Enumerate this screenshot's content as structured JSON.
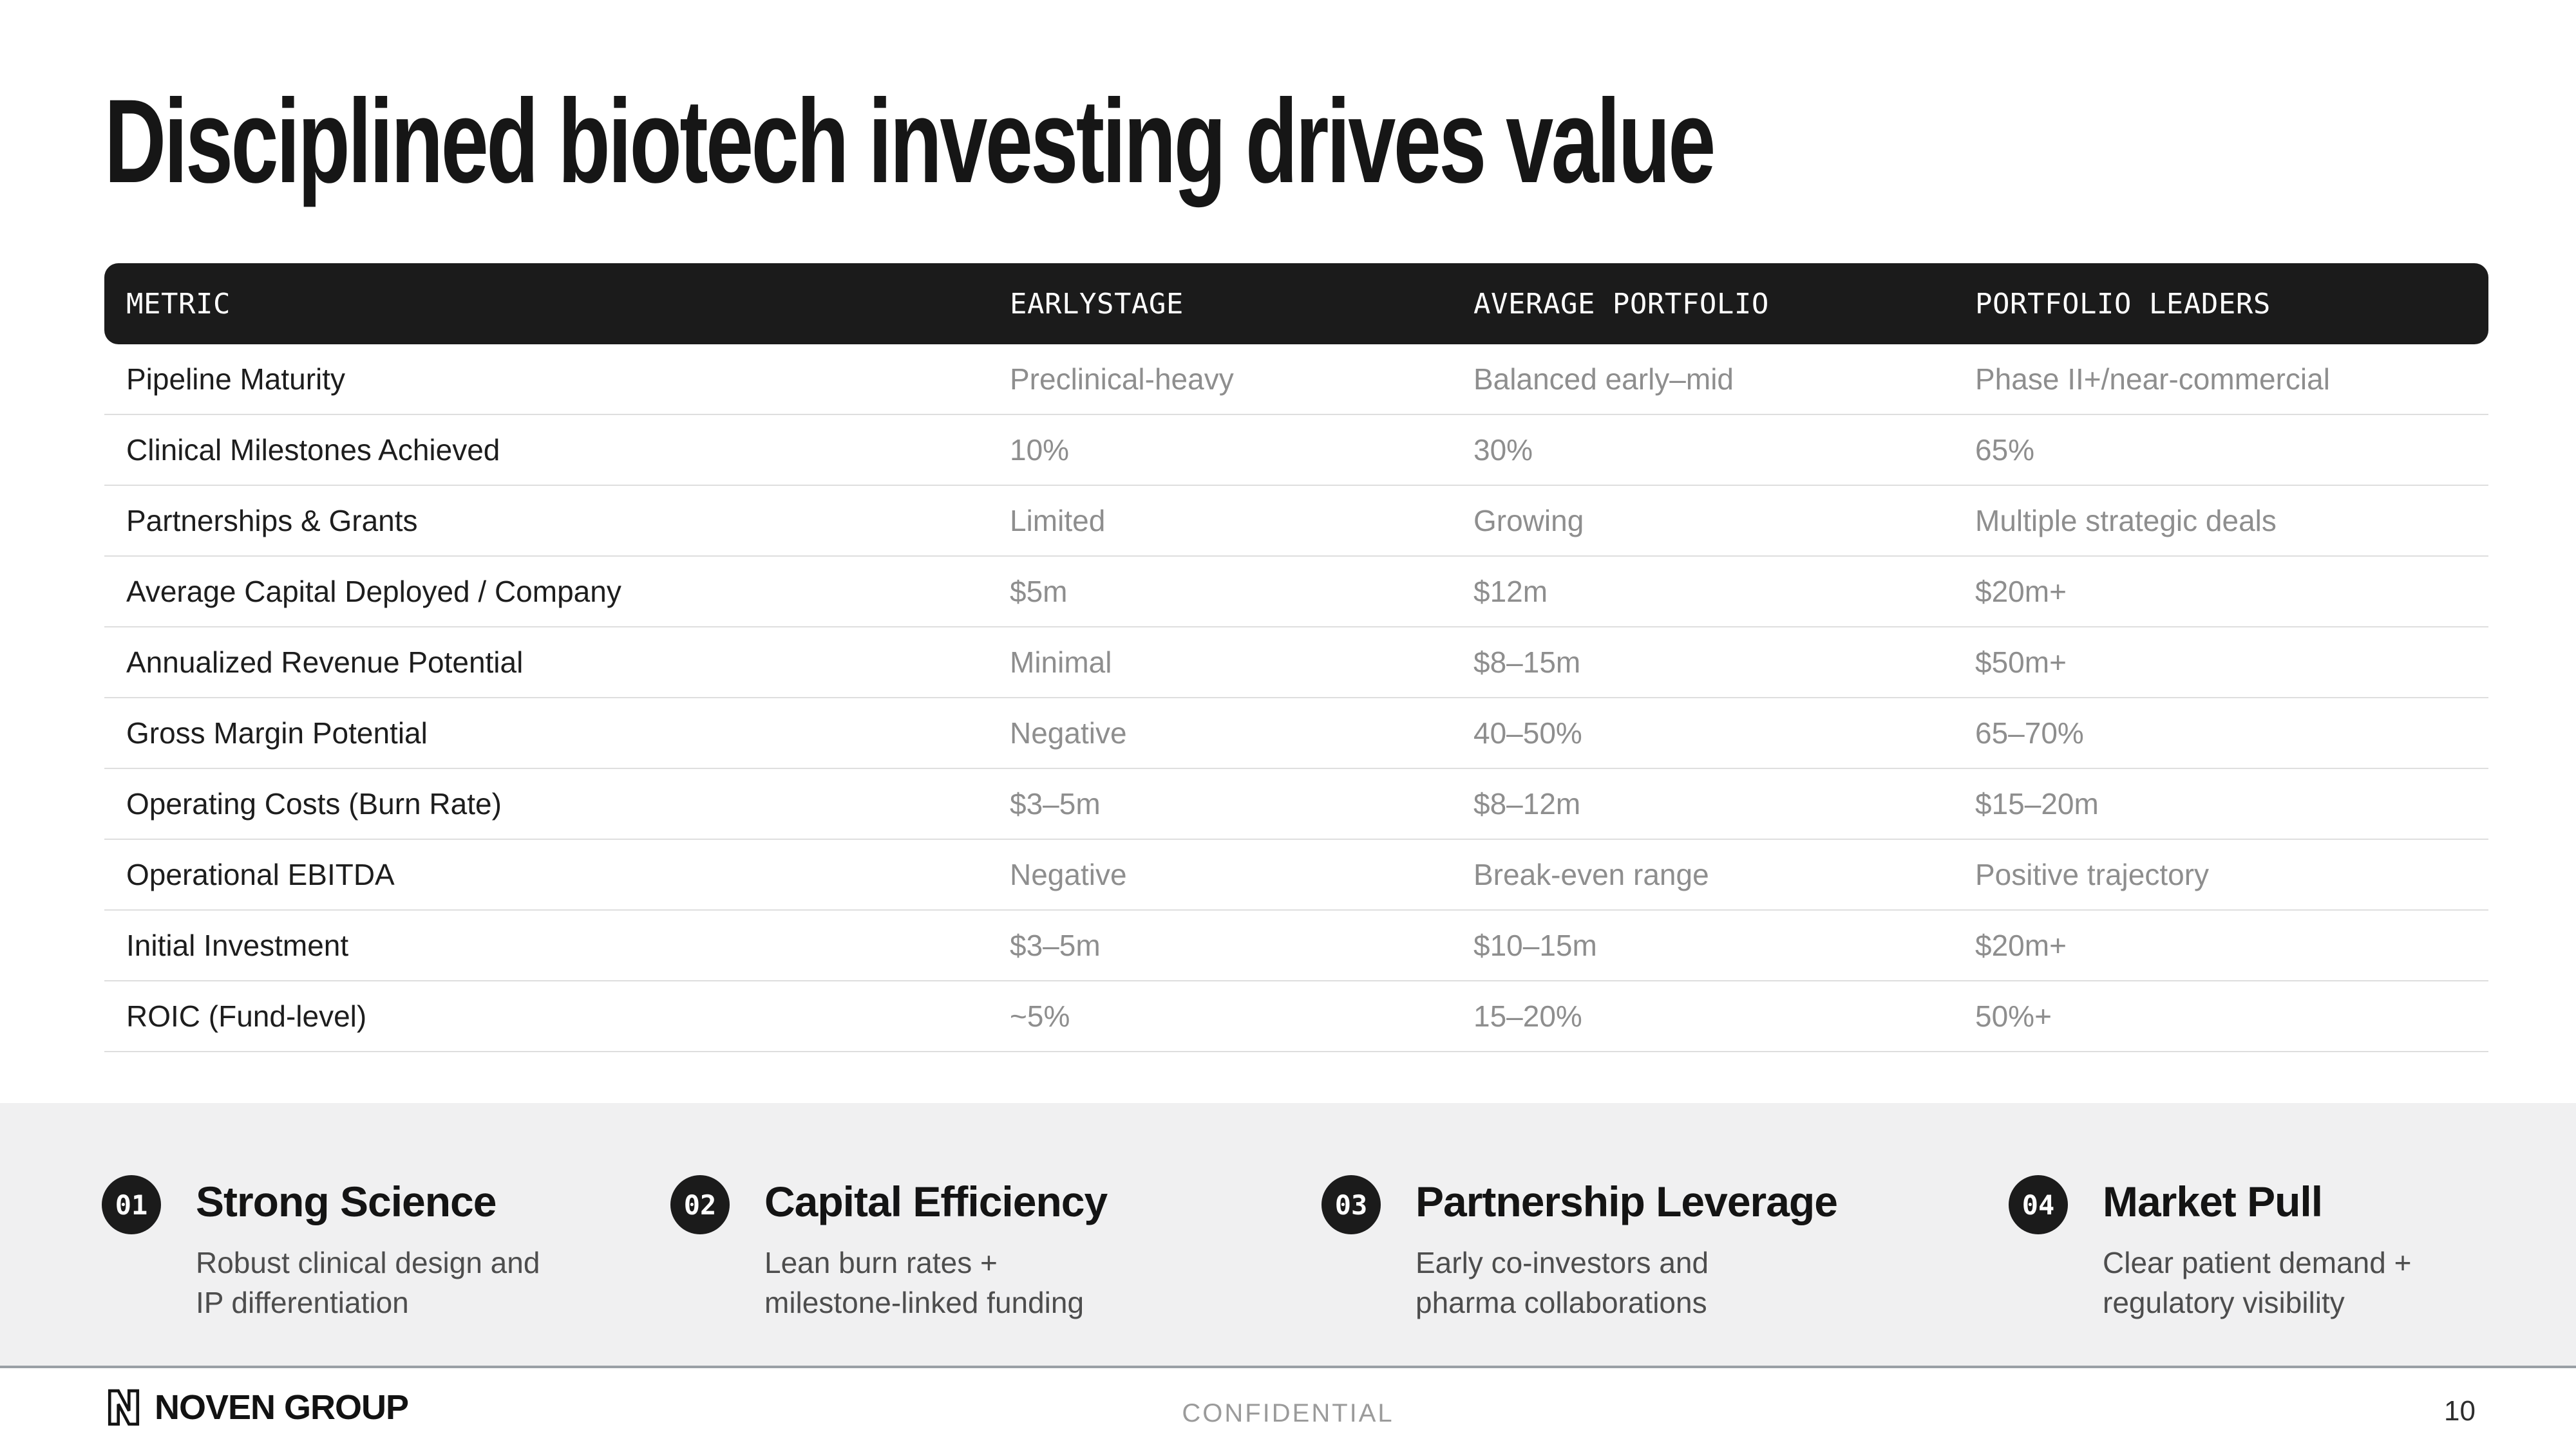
{
  "title": "Disciplined biotech investing drives value",
  "table": {
    "columns": [
      "METRIC",
      "EARLYSTAGE",
      "AVERAGE PORTFOLIO",
      "PORTFOLIO LEADERS"
    ],
    "rows": [
      {
        "metric": "Pipeline Maturity",
        "early_stage": "Preclinical-heavy",
        "average_portfolio": "Balanced early–mid",
        "portfolio_leaders": "Phase II+/near-commercial"
      },
      {
        "metric": "Clinical Milestones Achieved",
        "early_stage": "10%",
        "average_portfolio": "30%",
        "portfolio_leaders": "65%"
      },
      {
        "metric": "Partnerships & Grants",
        "early_stage": "Limited",
        "average_portfolio": "Growing",
        "portfolio_leaders": "Multiple strategic deals"
      },
      {
        "metric": "Average Capital Deployed / Company",
        "early_stage": "$5m",
        "average_portfolio": "$12m",
        "portfolio_leaders": "$20m+"
      },
      {
        "metric": "Annualized Revenue Potential",
        "early_stage": "Minimal",
        "average_portfolio": "$8–15m",
        "portfolio_leaders": "$50m+"
      },
      {
        "metric": "Gross Margin Potential",
        "early_stage": "Negative",
        "average_portfolio": "40–50%",
        "portfolio_leaders": "65–70%"
      },
      {
        "metric": "Operating Costs (Burn Rate)",
        "early_stage": "$3–5m",
        "average_portfolio": "$8–12m",
        "portfolio_leaders": "$15–20m"
      },
      {
        "metric": "Operational EBITDA",
        "early_stage": "Negative",
        "average_portfolio": "Break-even range",
        "portfolio_leaders": "Positive trajectory"
      },
      {
        "metric": "Initial Investment",
        "early_stage": "$3–5m",
        "average_portfolio": "$10–15m",
        "portfolio_leaders": "$20m+"
      },
      {
        "metric": "ROIC (Fund-level)",
        "early_stage": "~5%",
        "average_portfolio": "15–20%",
        "portfolio_leaders": "50%+"
      }
    ]
  },
  "pillars": [
    {
      "number": "01",
      "title": "Strong Science",
      "description": "Robust clinical design and IP differentiation"
    },
    {
      "number": "02",
      "title": "Capital Efficiency",
      "description": "Lean burn rates + milestone-linked funding"
    },
    {
      "number": "03",
      "title": "Partnership Leverage",
      "description": "Early co-investors and pharma collaborations"
    },
    {
      "number": "04",
      "title": "Market Pull",
      "description": "Clear patient demand + regulatory visibility"
    }
  ],
  "footer": {
    "brand": "NOVEN GROUP",
    "confidential": "CONFIDENTIAL",
    "page_number": "10"
  },
  "colors": {
    "header_bar": "#1b1b1b",
    "metric_text": "#1d1d1d",
    "value_text": "#8e8e8e",
    "row_divider": "#dedede",
    "band_background": "#f0f0f1",
    "footer_divider": "#9aa0a6",
    "description_text": "#4d4d4d",
    "confidential_text": "#9b9b9b"
  }
}
